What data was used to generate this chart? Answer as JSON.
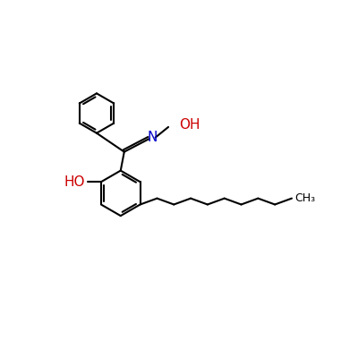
{
  "background_color": "#ffffff",
  "bond_color": "#000000",
  "N_color": "#0000cd",
  "O_color": "#cc0000",
  "line_width": 1.5,
  "font_size": 10,
  "fig_width": 4.0,
  "fig_height": 4.0,
  "dpi": 100,
  "xlim": [
    0,
    10
  ],
  "ylim": [
    0,
    10
  ]
}
